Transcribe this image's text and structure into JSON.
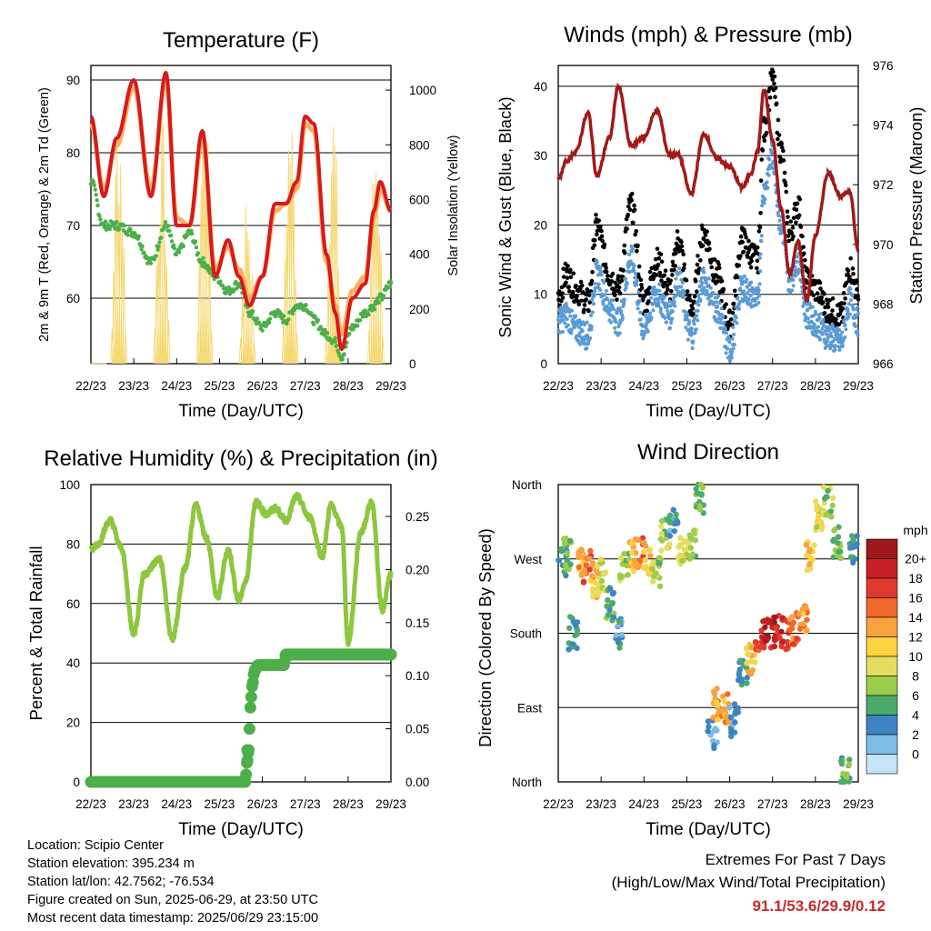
{
  "x_ticks": [
    "22/23",
    "23/23",
    "24/23",
    "25/23",
    "26/23",
    "27/23",
    "28/23",
    "29/23"
  ],
  "xlabel": "Time (Day/UTC)",
  "chart_data": [
    {
      "type": "line",
      "title": "Temperature (F)",
      "xlabel": "Time (Day/UTC)",
      "ylabel": "2m & 9m T (Red, Orange) & 2m Td (Green)",
      "y2label": "Solar Insolation (Yellow)",
      "ylim": [
        51,
        92
      ],
      "y2lim": [
        0,
        1090
      ],
      "yticks": [
        60,
        70,
        80,
        90
      ],
      "y2ticks": [
        0,
        200,
        400,
        600,
        800,
        1000
      ],
      "x": [
        0,
        0.3,
        0.6,
        1.0,
        1.4,
        1.75,
        2.0,
        2.3,
        2.6,
        2.9,
        3.2,
        3.45,
        3.7,
        4.0,
        4.3,
        4.55,
        4.8,
        5.0,
        5.2,
        5.5,
        5.7,
        5.85,
        6.1,
        6.4,
        6.6,
        6.75,
        7.0
      ],
      "series": [
        {
          "name": "2m T",
          "color": "#d7191c",
          "values": [
            85,
            74,
            82,
            90,
            74,
            91,
            70,
            70,
            83,
            63,
            68,
            63,
            59,
            63,
            73,
            73,
            76,
            85,
            84,
            66,
            58,
            53,
            60,
            62,
            72,
            76,
            72
          ]
        },
        {
          "name": "9m T",
          "color": "#fdae61",
          "values": [
            84,
            75,
            81,
            89,
            75,
            90,
            71,
            70,
            82,
            64,
            67,
            64,
            60,
            63,
            72,
            73,
            75,
            84,
            83,
            65,
            59,
            55,
            61,
            63,
            71,
            75,
            72
          ]
        },
        {
          "name": "2m Td",
          "color": "#4daf4a",
          "values": [
            76,
            70,
            70,
            69,
            65,
            70,
            66,
            69,
            65,
            63,
            61,
            62,
            58,
            56,
            58,
            57,
            59,
            59,
            57,
            55,
            54,
            52,
            56,
            58,
            59,
            60,
            62
          ]
        }
      ],
      "solar": {
        "name": "Solar Insolation",
        "color": "#f5d76e",
        "peaks": [
          [
            0.15,
            0
          ],
          [
            0.62,
            1000
          ],
          [
            1.62,
            950
          ],
          [
            2.62,
            1070
          ],
          [
            3.62,
            680
          ],
          [
            4.62,
            1010
          ],
          [
            5.62,
            1010
          ],
          [
            6.62,
            930
          ]
        ]
      }
    },
    {
      "type": "scatter",
      "title": "Winds (mph) & Pressure (mb)",
      "xlabel": "Time (Day/UTC)",
      "ylabel": "Sonic Wind & Gust (Blue, Black)",
      "y2label": "Station Pressure (Maroon)",
      "ylim": [
        0,
        43
      ],
      "y2lim": [
        966,
        976
      ],
      "yticks": [
        0,
        10,
        20,
        30,
        40
      ],
      "y2ticks": [
        966,
        968,
        970,
        972,
        974,
        976
      ],
      "x": [
        0,
        0.2,
        0.4,
        0.7,
        0.9,
        1.2,
        1.4,
        1.7,
        2.0,
        2.3,
        2.6,
        2.8,
        3.1,
        3.4,
        3.7,
        4.0,
        4.3,
        4.5,
        4.65,
        4.8,
        5.0,
        5.2,
        5.4,
        5.6,
        5.8,
        6.0,
        6.3,
        6.6,
        6.8,
        7.0
      ],
      "series": [
        {
          "name": "Gust",
          "color": "#000000",
          "values": [
            9,
            12,
            10,
            8,
            19,
            12,
            10,
            22,
            8,
            14,
            10,
            17,
            7,
            18,
            12,
            5,
            17,
            15,
            14,
            33,
            40,
            30,
            18,
            22,
            11,
            10,
            7,
            6,
            13,
            9
          ]
        },
        {
          "name": "Sonic Wind",
          "color": "#5b9bd5",
          "values": [
            6,
            7,
            5,
            4,
            13,
            8,
            6,
            15,
            5,
            10,
            7,
            12,
            4,
            12,
            8,
            2,
            11,
            10,
            9,
            25,
            30,
            20,
            12,
            15,
            7,
            6,
            4,
            3,
            9,
            6
          ]
        },
        {
          "name": "Station Pressure",
          "color": "#a01a1a",
          "values": [
            972.2,
            972.8,
            973.1,
            974.4,
            972.3,
            973.6,
            975.3,
            973.3,
            973.6,
            974.5,
            973.0,
            973.0,
            971.7,
            973.7,
            972.9,
            972.6,
            971.9,
            972.4,
            973.1,
            975.2,
            973.5,
            971.2,
            969.0,
            970.1,
            968.1,
            970.3,
            972.4,
            971.6,
            971.8,
            969.8
          ]
        }
      ]
    },
    {
      "type": "line",
      "title": "Relative Humidity (%) & Precipitation (in)",
      "xlabel": "Time (Day/UTC)",
      "ylabel": "Percent & Total Rainfall",
      "ylim": [
        0,
        100
      ],
      "y2lim": [
        0,
        0.28
      ],
      "yticks": [
        0,
        20,
        40,
        60,
        80,
        100
      ],
      "y2ticks": [
        0.0,
        0.05,
        0.1,
        0.15,
        0.2,
        0.25
      ],
      "x": [
        0,
        0.15,
        0.45,
        0.7,
        1.0,
        1.25,
        1.6,
        1.9,
        2.2,
        2.45,
        2.7,
        2.95,
        3.2,
        3.45,
        3.6,
        3.85,
        4.1,
        4.3,
        4.55,
        4.8,
        5.1,
        5.4,
        5.6,
        5.85,
        6.0,
        6.3,
        6.55,
        6.8,
        7.0
      ],
      "series": [
        {
          "name": "Relative Humidity",
          "color": "#8dc63f",
          "values": [
            78,
            80,
            88,
            79,
            50,
            70,
            75,
            48,
            72,
            93,
            82,
            62,
            78,
            61,
            67,
            94,
            90,
            92,
            88,
            96,
            89,
            76,
            93,
            86,
            47,
            84,
            94,
            58,
            70
          ]
        },
        {
          "name": "Total Precipitation",
          "color": "#4daf4a",
          "x": [
            0,
            1,
            2,
            3,
            3.6,
            3.65,
            3.68,
            3.72,
            3.76,
            3.82,
            3.9,
            4.1,
            4.3,
            4.5,
            4.55,
            4.6,
            5.0,
            5.5,
            6.0,
            6.5,
            7.0
          ],
          "values": [
            0,
            0,
            0,
            0,
            0,
            0.02,
            0.03,
            0.07,
            0.09,
            0.105,
            0.11,
            0.11,
            0.11,
            0.11,
            0.12,
            0.12,
            0.12,
            0.12,
            0.12,
            0.12,
            0.12
          ]
        }
      ]
    },
    {
      "type": "scatter",
      "title": "Wind Direction",
      "xlabel": "Time (Day/UTC)",
      "ylabel": "Direction (Colored By Speed)",
      "yticks": [
        "North",
        "East",
        "South",
        "West",
        "North"
      ],
      "ylim": [
        0,
        360
      ],
      "colorbar": {
        "unit": "mph",
        "labels": [
          "20+",
          "18",
          "16",
          "14",
          "12",
          "10",
          "8",
          "6",
          "4",
          "2",
          "0"
        ],
        "colors": [
          "#9e1a1a",
          "#c62026",
          "#e03a2f",
          "#f0692c",
          "#f9a03f",
          "#ffd23f",
          "#e3de5e",
          "#9ccc4b",
          "#4caa6a",
          "#3f83c3",
          "#7ebbe6",
          "#c4e4f7"
        ]
      },
      "x": [
        0.1,
        0.2,
        0.35,
        0.55,
        0.7,
        0.85,
        1.0,
        1.2,
        1.4,
        1.55,
        1.75,
        1.9,
        2.1,
        2.3,
        2.5,
        2.7,
        2.9,
        3.1,
        3.3,
        3.6,
        3.7,
        3.9,
        4.1,
        4.3,
        4.5,
        4.7,
        4.9,
        5.1,
        5.3,
        5.5,
        5.7,
        5.9,
        6.1,
        6.3,
        6.5,
        6.7,
        6.9
      ],
      "values": [
        265,
        275,
        180,
        270,
        260,
        240,
        250,
        215,
        180,
        260,
        275,
        280,
        270,
        255,
        300,
        315,
        280,
        290,
        345,
        60,
        95,
        90,
        75,
        135,
        150,
        175,
        180,
        183,
        180,
        185,
        200,
        275,
        320,
        340,
        290,
        10,
        280
      ],
      "speeds": [
        6,
        7,
        5,
        14,
        16,
        12,
        10,
        6,
        4,
        8,
        13,
        16,
        13,
        8,
        8,
        4,
        10,
        8,
        7,
        3,
        14,
        14,
        4,
        5,
        12,
        18,
        20,
        20,
        18,
        16,
        14,
        12,
        10,
        8,
        7,
        6,
        5
      ]
    }
  ],
  "info": {
    "location": "Location: Scipio Center",
    "elevation": "Station elevation: 395.234 m",
    "latlon": "Station lat/lon: 42.7562; -76.534",
    "created": "Figure created on Sun, 2025-06-29, at 23:50 UTC",
    "recent": "Most recent data timestamp: 2025/06/29 23:15:00"
  },
  "extremes": {
    "heading": "Extremes For Past 7 Days",
    "subheading": "(High/Low/Max Wind/Total Precipitation)",
    "values": "91.1/53.6/29.9/0.12",
    "value_color": "#c62a2a"
  }
}
